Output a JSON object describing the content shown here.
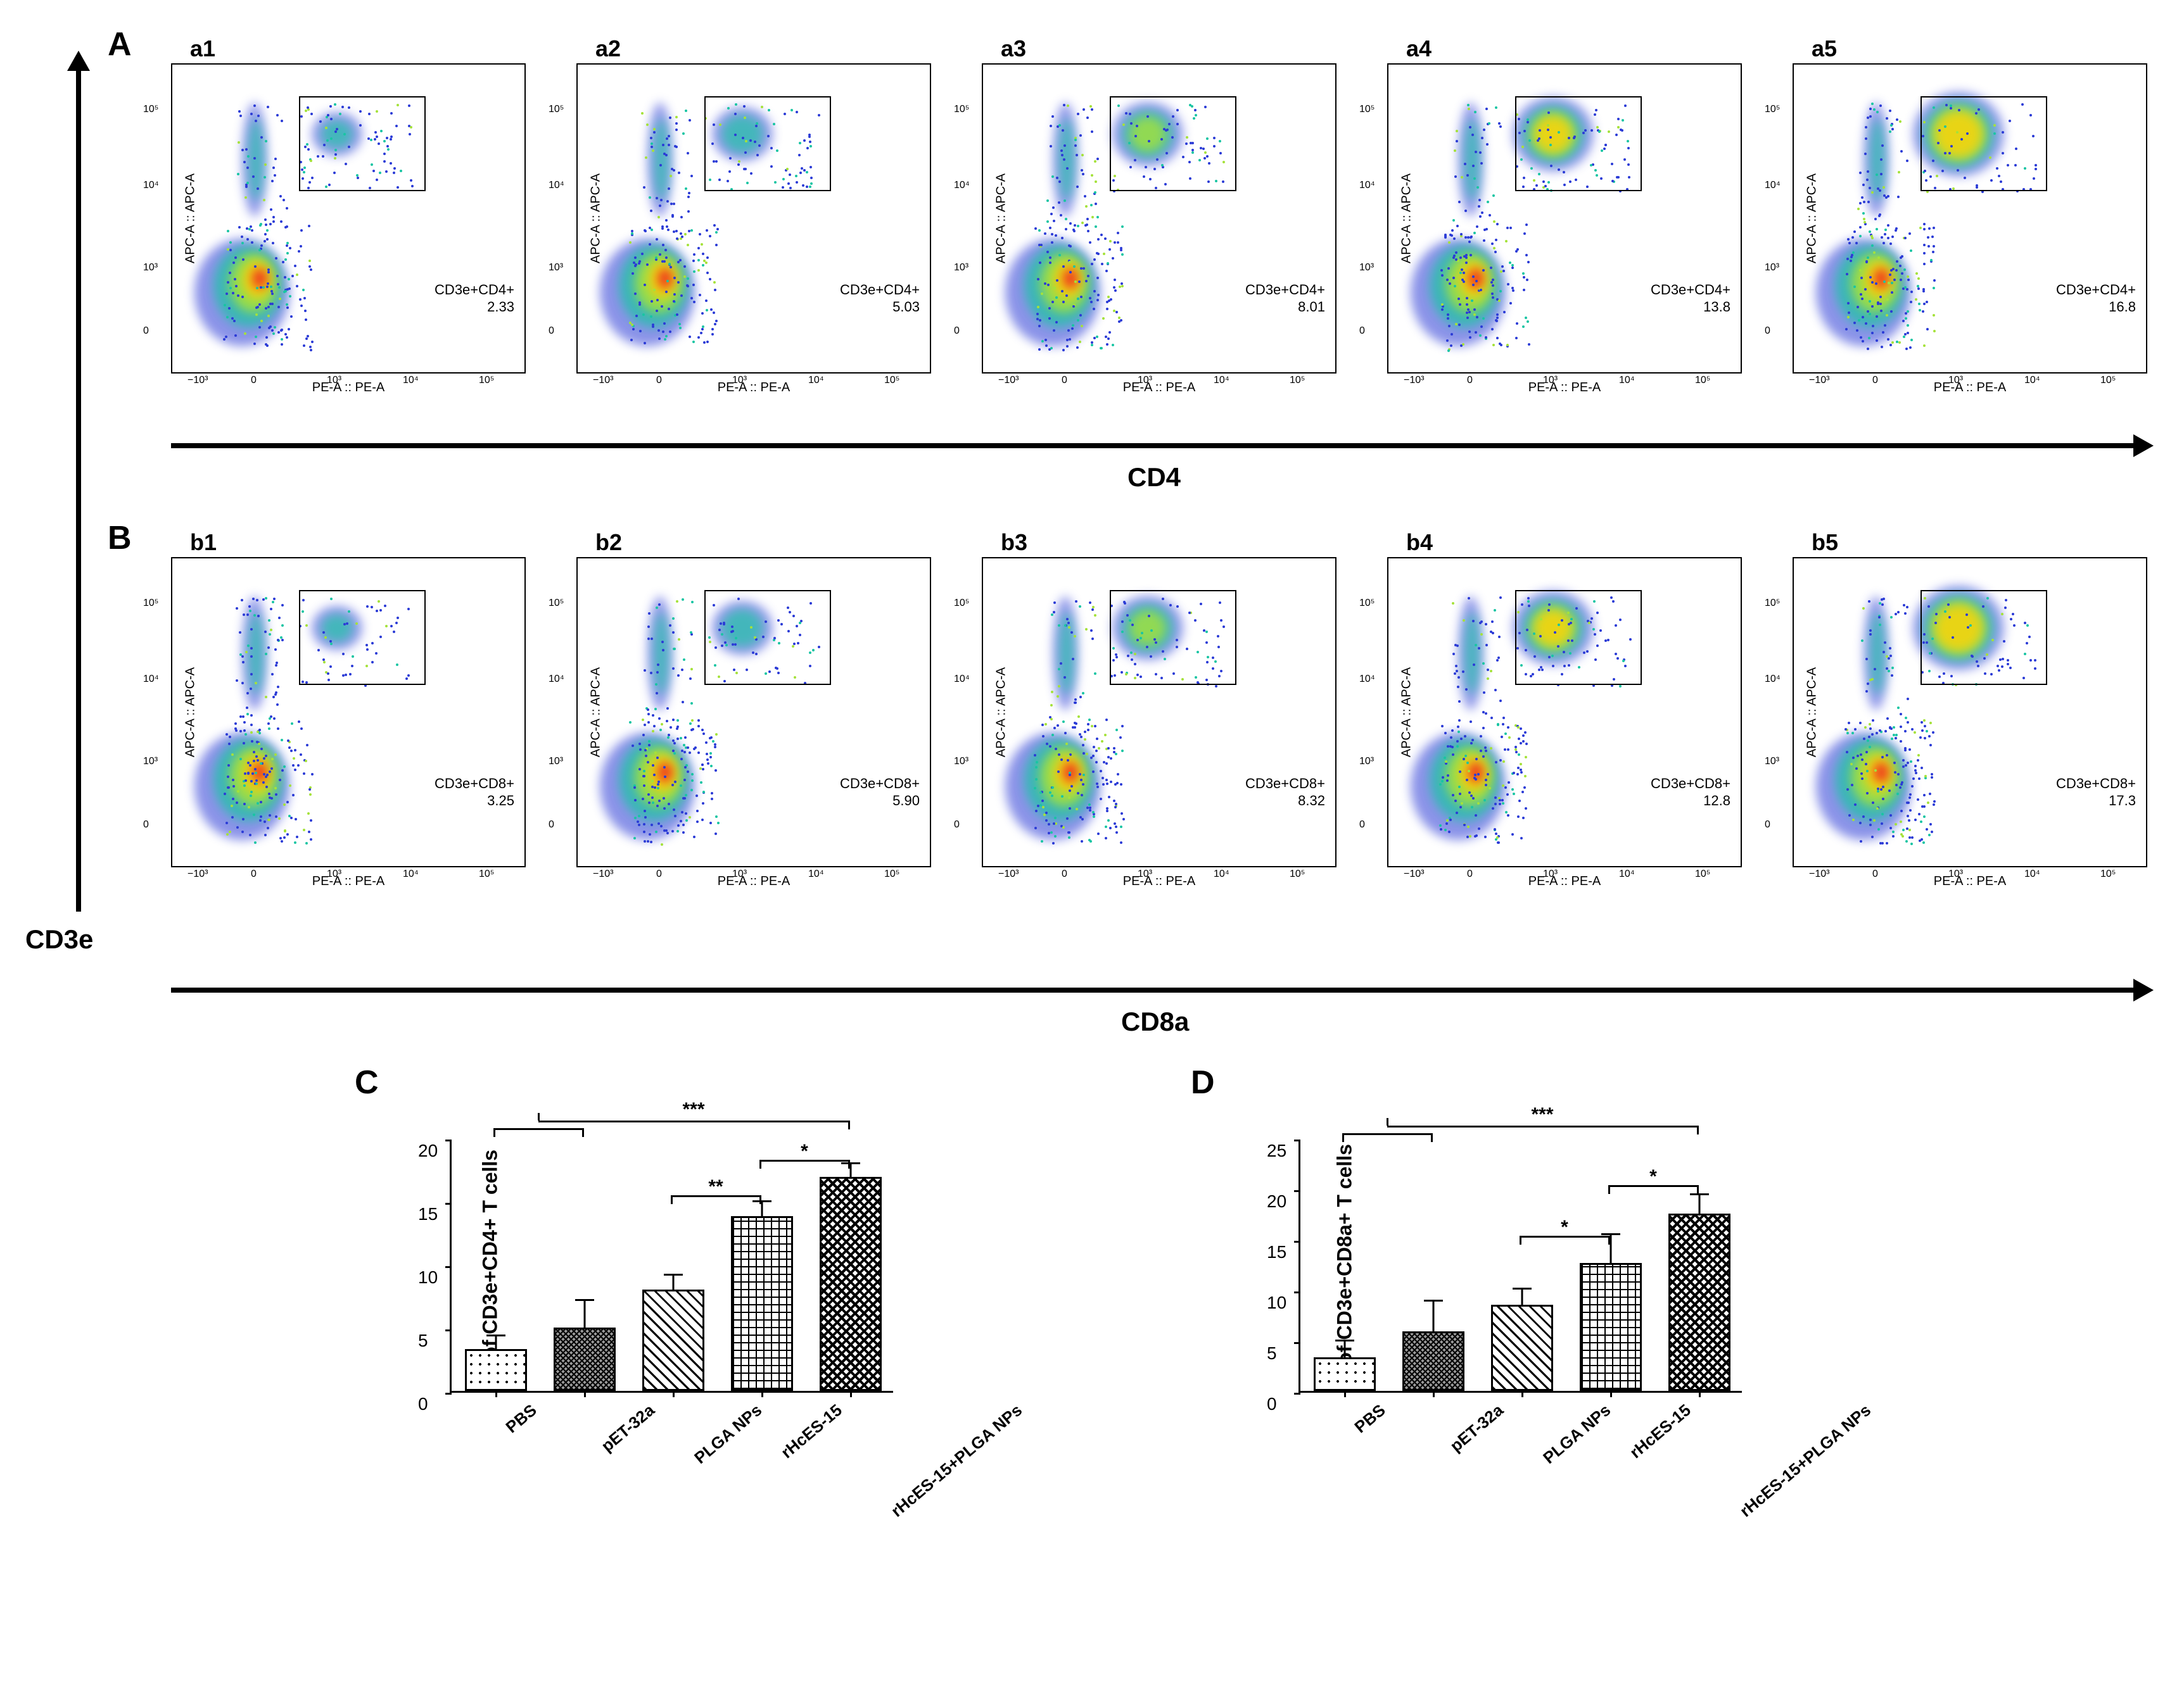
{
  "panels": {
    "A": "A",
    "B": "B",
    "C": "C",
    "D": "D"
  },
  "y_global_label": "CD3e",
  "rowA": {
    "label_axis": "CD4",
    "x_axis": "PE-A :: PE-A",
    "y_axis": "APC-A :: APC-A",
    "gate_name": "CD3e+CD4+",
    "plots": [
      {
        "title": "a1",
        "gate_value": "2.33"
      },
      {
        "title": "a2",
        "gate_value": "5.03"
      },
      {
        "title": "a3",
        "gate_value": "8.01"
      },
      {
        "title": "a4",
        "gate_value": "13.8"
      },
      {
        "title": "a5",
        "gate_value": "16.8"
      }
    ],
    "ticks": {
      "x": [
        "-10^3",
        "0",
        "10^3",
        "10^4",
        "10^5"
      ],
      "y": [
        "0",
        "10^3",
        "10^4",
        "10^5"
      ]
    }
  },
  "rowB": {
    "label_axis": "CD8a",
    "x_axis": "PE-A :: PE-A",
    "y_axis": "APC-A :: APC-A",
    "gate_name": "CD3e+CD8+",
    "plots": [
      {
        "title": "b1",
        "gate_value": "3.25"
      },
      {
        "title": "b2",
        "gate_value": "5.90"
      },
      {
        "title": "b3",
        "gate_value": "8.32"
      },
      {
        "title": "b4",
        "gate_value": "12.8"
      },
      {
        "title": "b5",
        "gate_value": "17.3"
      }
    ],
    "ticks": {
      "x": [
        "-10^3",
        "0",
        "10^3",
        "10^4",
        "10^5"
      ],
      "y": [
        "0",
        "10^3",
        "10^4",
        "10^5"
      ]
    }
  },
  "chartC": {
    "type": "bar",
    "y_title": "% of CD3e+CD4+ T cells",
    "ylim": [
      0,
      20
    ],
    "ytick_step": 5,
    "categories": [
      "PBS",
      "pET-32a",
      "PLGA NPs",
      "rHcES-15",
      "rHcES-15+PLGA NPs"
    ],
    "values": [
      3.3,
      5.0,
      8.0,
      13.8,
      16.9
    ],
    "errors": [
      1.0,
      2.1,
      1.1,
      1.1,
      1.0
    ],
    "bar_colors": [
      "#ffffff",
      "#9a9a9a",
      "#d9d9d9",
      "#bfbfbf",
      "#555555"
    ],
    "patterns": [
      "dots",
      "fine-cross",
      "diag",
      "grid",
      "cross"
    ],
    "bar_width": 0.7,
    "background_color": "#ffffff",
    "significance": [
      {
        "from": 0,
        "to": 1,
        "bracket_to": 4,
        "level": 110,
        "label": "***",
        "style": "two-group"
      },
      {
        "from": 2,
        "to": 3,
        "level": 78,
        "label": "**"
      },
      {
        "from": 3,
        "to": 4,
        "level": 92,
        "label": "*"
      }
    ]
  },
  "chartD": {
    "type": "bar",
    "y_title": "% of CD3e+CD8a+ T cells",
    "ylim": [
      0,
      25
    ],
    "ytick_step": 5,
    "categories": [
      "PBS",
      "pET-32a",
      "PLGA NPs",
      "rHcES-15",
      "rHcES-15+PLGA NPs"
    ],
    "values": [
      3.3,
      5.9,
      8.5,
      12.6,
      17.5
    ],
    "errors": [
      1.6,
      2.9,
      1.5,
      2.8,
      1.8
    ],
    "bar_colors": [
      "#ffffff",
      "#9a9a9a",
      "#d9d9d9",
      "#bfbfbf",
      "#555555"
    ],
    "patterns": [
      "dots",
      "fine-cross",
      "diag",
      "grid",
      "cross"
    ],
    "bar_width": 0.7,
    "background_color": "#ffffff",
    "significance": [
      {
        "from": 0,
        "to": 1,
        "bracket_to": 4,
        "level": 108,
        "label": "***",
        "style": "two-group"
      },
      {
        "from": 2,
        "to": 3,
        "level": 62,
        "label": "*"
      },
      {
        "from": 3,
        "to": 4,
        "level": 82,
        "label": "*"
      }
    ]
  },
  "density_colors": {
    "low": "#2b3bd6",
    "mid1": "#19c5a3",
    "mid2": "#a5e23a",
    "high": "#f2d40f",
    "peak": "#ef3a1f"
  }
}
